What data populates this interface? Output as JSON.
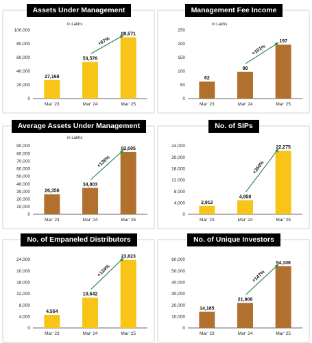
{
  "colors": {
    "gold": "#F7C417",
    "brown": "#B2702F",
    "arrow": "#2E8B57"
  },
  "chart_data": [
    {
      "type": "bar",
      "title": "Assets Under Management",
      "unit_note": "in Lakhs",
      "categories": [
        "Mar’ 23",
        "Mar’ 24",
        "Mar’ 25"
      ],
      "values": [
        27168,
        53576,
        89571
      ],
      "value_labels": [
        "27,168",
        "53,576",
        "89,571"
      ],
      "ylim": [
        0,
        100000
      ],
      "yticks": [
        0,
        20000,
        40000,
        60000,
        80000,
        100000
      ],
      "ytick_labels": [
        "0",
        "20,000",
        "40,000",
        "60,000",
        "80,000",
        "100,000"
      ],
      "growth_label": "+67%",
      "bar_color": "gold"
    },
    {
      "type": "bar",
      "title": "Management Fee Income",
      "unit_note": "in Lakhs",
      "categories": [
        "Mar’ 23",
        "Mar’ 24",
        "Mar’ 25"
      ],
      "values": [
        62,
        98,
        197
      ],
      "value_labels": [
        "62",
        "98",
        "197"
      ],
      "ylim": [
        0,
        250
      ],
      "yticks": [
        0,
        50,
        100,
        150,
        200,
        250
      ],
      "ytick_labels": [
        "0",
        "50",
        "100",
        "150",
        "200",
        "250"
      ],
      "growth_label": "+101%",
      "bar_color": "brown"
    },
    {
      "type": "bar",
      "title": "Average Assets Under Management",
      "unit_note": "in Lakhs",
      "categories": [
        "Mar’ 23",
        "Mar’ 24",
        "Mar’ 25"
      ],
      "values": [
        26356,
        34803,
        82005
      ],
      "value_labels": [
        "26,356",
        "34,803",
        "82,005"
      ],
      "ylim": [
        0,
        90000
      ],
      "yticks": [
        0,
        10000,
        20000,
        30000,
        40000,
        50000,
        60000,
        70000,
        80000,
        90000
      ],
      "ytick_labels": [
        "0",
        "10,000",
        "20,000",
        "30,000",
        "40,000",
        "50,000",
        "60,000",
        "70,000",
        "80,000",
        "90,000"
      ],
      "growth_label": "+136%",
      "bar_color": "brown"
    },
    {
      "type": "bar",
      "title": "No. of SIPs",
      "unit_note": "",
      "categories": [
        "Mar’ 23",
        "Mar’ 24",
        "Mar’ 25"
      ],
      "values": [
        2912,
        4950,
        22275
      ],
      "value_labels": [
        "2,912",
        "4,950",
        "22,275"
      ],
      "ylim": [
        0,
        24000
      ],
      "yticks": [
        0,
        4000,
        8000,
        12000,
        16000,
        20000,
        24000
      ],
      "ytick_labels": [
        "0",
        "4,000",
        "8,000",
        "12,000",
        "16,000",
        "20,000",
        "24,000"
      ],
      "growth_label": "+350%",
      "bar_color": "gold"
    },
    {
      "type": "bar",
      "title": "No. of Empaneled Distributors",
      "unit_note": "",
      "categories": [
        "Mar’ 23",
        "Mar’ 24",
        "Mar’ 25"
      ],
      "values": [
        4554,
        10642,
        23823
      ],
      "value_labels": [
        "4,554",
        "10,642",
        "23,823"
      ],
      "ylim": [
        0,
        24000
      ],
      "yticks": [
        0,
        4000,
        8000,
        12000,
        16000,
        20000,
        24000
      ],
      "ytick_labels": [
        "0",
        "4,000",
        "8,000",
        "12,000",
        "16,000",
        "20,000",
        "24,000"
      ],
      "growth_label": "+124%",
      "bar_color": "gold"
    },
    {
      "type": "bar",
      "title": "No. of Unique Investors",
      "unit_note": "",
      "categories": [
        "Mar’ 23",
        "Mar’ 24",
        "Mar’ 25"
      ],
      "values": [
        14185,
        21908,
        54108
      ],
      "value_labels": [
        "14,185",
        "21,908",
        "54,108"
      ],
      "ylim": [
        0,
        60000
      ],
      "yticks": [
        0,
        10000,
        20000,
        30000,
        40000,
        50000,
        60000
      ],
      "ytick_labels": [
        "0",
        "10,000",
        "20,000",
        "30,000",
        "40,000",
        "50,000",
        "60,000"
      ],
      "growth_label": "+147%",
      "bar_color": "brown"
    }
  ]
}
